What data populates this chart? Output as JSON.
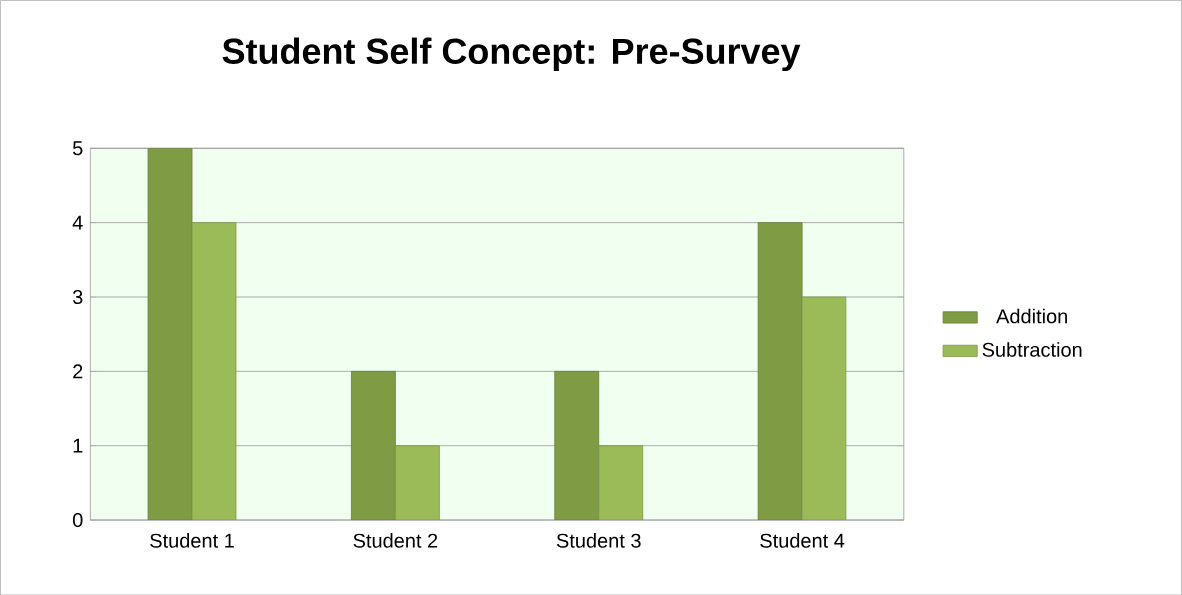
{
  "chart_data": {
    "type": "bar",
    "title": "Student Self Concept: Pre-Survey",
    "categories": [
      "Student 1",
      "Student 2",
      "Student 3",
      "Student 4"
    ],
    "series": [
      {
        "name": "Addition",
        "color": "#7f9c45",
        "values": [
          5,
          2,
          2,
          4
        ]
      },
      {
        "name": "Subtraction",
        "color": "#9bbb59",
        "values": [
          4,
          1,
          1,
          3
        ]
      }
    ],
    "ylim": [
      0,
      5
    ],
    "yticks": [
      0,
      1,
      2,
      3,
      4,
      5
    ],
    "grid": "y",
    "legend": "right"
  }
}
